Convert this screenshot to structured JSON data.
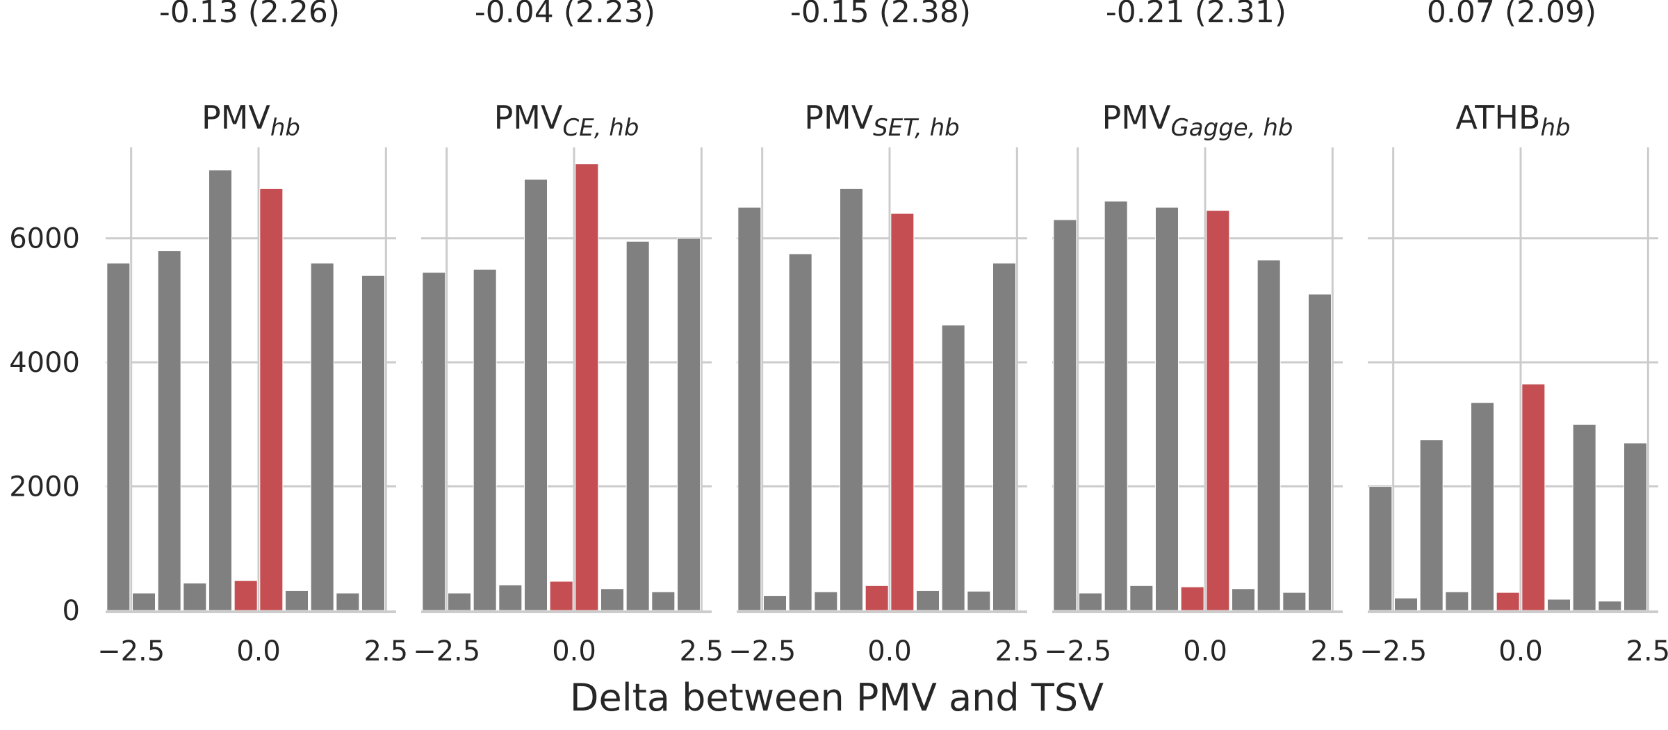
{
  "chart_data": {
    "type": "bar",
    "xlabel": "Delta between PMV and TSV",
    "ylabel": "",
    "ylim": [
      0,
      7600
    ],
    "xlim": [
      -3.0,
      2.7
    ],
    "yticks": [
      0,
      2000,
      4000,
      6000
    ],
    "ytick_labels": [
      "0",
      "2000",
      "4000",
      "6000"
    ],
    "xticks": [
      -2.5,
      0.0,
      2.5
    ],
    "xtick_labels": [
      "−2.5",
      "0.0",
      "2.5"
    ],
    "grid": true,
    "bin_centers": [
      -2.75,
      -2.25,
      -1.75,
      -1.25,
      -0.75,
      -0.25,
      0.25,
      0.75,
      1.25,
      1.75,
      2.25,
      2.75
    ],
    "highlight_bins": [
      5,
      6
    ],
    "colors": {
      "default": "#808080",
      "highlight": "#c44e52",
      "grid": "#cccccc",
      "axis": "#cccccc"
    },
    "panels": [
      {
        "stat_label": "-0.13 (2.26)",
        "title_main": "PMV",
        "title_sub": "hb",
        "values": [
          5600,
          280,
          5800,
          440,
          7100,
          480,
          6800,
          320,
          5600,
          280,
          5400,
          0
        ]
      },
      {
        "stat_label": "-0.04 (2.23)",
        "title_main": "PMV",
        "title_sub": "CE, hb",
        "values": [
          5450,
          280,
          5500,
          410,
          6950,
          470,
          7200,
          350,
          5950,
          300,
          6000,
          0
        ]
      },
      {
        "stat_label": "-0.15 (2.38)",
        "title_main": "PMV",
        "title_sub": "SET, hb",
        "values": [
          6500,
          240,
          5750,
          300,
          6800,
          400,
          6400,
          320,
          4600,
          310,
          5600,
          0
        ]
      },
      {
        "stat_label": "-0.21 (2.31)",
        "title_main": "PMV",
        "title_sub": "Gagge, hb",
        "values": [
          6300,
          280,
          6600,
          400,
          6500,
          380,
          6450,
          350,
          5650,
          290,
          5100,
          0
        ]
      },
      {
        "stat_label": "0.07 (2.09)",
        "title_main": "ATHB",
        "title_sub": "hb",
        "values": [
          2000,
          200,
          2750,
          300,
          3350,
          290,
          3650,
          180,
          3000,
          150,
          2700,
          0
        ]
      }
    ]
  }
}
